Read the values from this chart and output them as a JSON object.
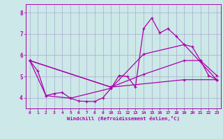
{
  "xlabel": "Windchill (Refroidissement éolien,°C)",
  "bg_color": "#cce8e8",
  "grid_color": "#aaaacc",
  "line_color": "#aa00aa",
  "xlim": [
    -0.5,
    23.5
  ],
  "ylim": [
    3.5,
    8.4
  ],
  "xticks": [
    0,
    1,
    2,
    3,
    4,
    5,
    6,
    7,
    8,
    9,
    10,
    11,
    12,
    13,
    14,
    15,
    16,
    17,
    18,
    19,
    20,
    21,
    22,
    23
  ],
  "yticks": [
    4,
    5,
    6,
    7,
    8
  ],
  "series1": [
    [
      0,
      5.75
    ],
    [
      1,
      5.25
    ],
    [
      2,
      4.1
    ],
    [
      3,
      4.2
    ],
    [
      4,
      4.25
    ],
    [
      5,
      3.98
    ],
    [
      6,
      3.85
    ],
    [
      7,
      3.83
    ],
    [
      8,
      3.83
    ],
    [
      9,
      4.0
    ],
    [
      10,
      4.45
    ],
    [
      11,
      5.05
    ],
    [
      12,
      5.0
    ],
    [
      13,
      4.5
    ],
    [
      14,
      7.25
    ],
    [
      15,
      7.75
    ],
    [
      16,
      7.05
    ],
    [
      17,
      7.25
    ],
    [
      18,
      6.9
    ],
    [
      19,
      6.5
    ],
    [
      20,
      6.4
    ],
    [
      21,
      5.75
    ],
    [
      22,
      5.05
    ],
    [
      23,
      4.85
    ]
  ],
  "series2": [
    [
      0,
      5.75
    ],
    [
      2,
      4.1
    ],
    [
      5,
      3.98
    ],
    [
      10,
      4.45
    ],
    [
      14,
      6.05
    ],
    [
      19,
      6.5
    ],
    [
      23,
      4.85
    ]
  ],
  "series3": [
    [
      0,
      5.75
    ],
    [
      10,
      4.5
    ],
    [
      14,
      5.1
    ],
    [
      19,
      5.75
    ],
    [
      21,
      5.75
    ],
    [
      23,
      5.05
    ]
  ],
  "series4": [
    [
      0,
      5.75
    ],
    [
      10,
      4.5
    ],
    [
      19,
      4.85
    ],
    [
      23,
      4.85
    ]
  ]
}
